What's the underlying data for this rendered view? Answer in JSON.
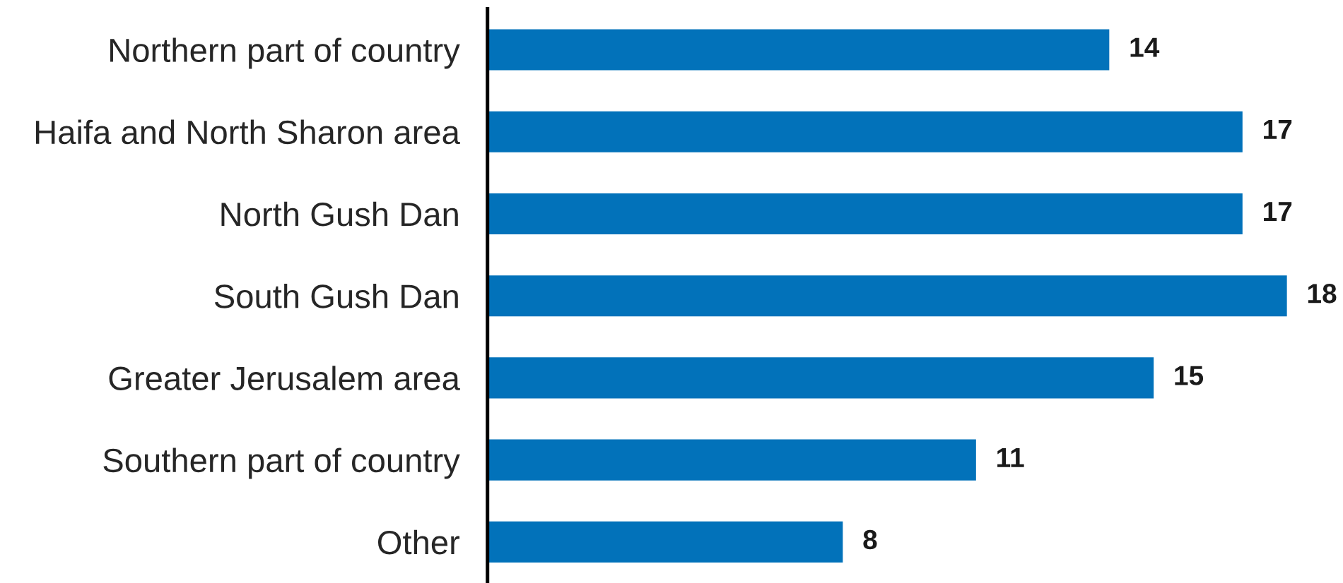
{
  "chart_data": {
    "type": "bar",
    "orientation": "horizontal",
    "categories": [
      "Northern part of country",
      "Haifa and North Sharon area",
      "North Gush Dan",
      "South Gush Dan",
      "Greater Jerusalem area",
      "Southern part of country",
      "Other"
    ],
    "values": [
      14,
      17,
      17,
      18,
      15,
      11,
      8
    ],
    "color": "#0272ba",
    "data_labels": true
  }
}
